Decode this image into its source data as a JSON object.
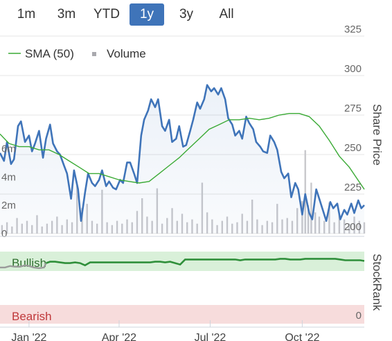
{
  "range_buttons": [
    {
      "label": "1m",
      "active": false
    },
    {
      "label": "3m",
      "active": false
    },
    {
      "label": "YTD",
      "active": false
    },
    {
      "label": "1y",
      "active": true
    },
    {
      "label": "3y",
      "active": false
    },
    {
      "label": "All",
      "active": false
    }
  ],
  "legend": {
    "sma_label": "SMA (50)",
    "volume_label": "Volume"
  },
  "colors": {
    "price": "#3f74b9",
    "sma": "#3aaa35",
    "volume": "#c8c8cc",
    "stockrank_line": "#2f8f3a",
    "stockrank_grey": "#9a9a9a",
    "bullish_band": "#d9f0d9",
    "bearish_band": "#f7dcdc",
    "active_button": "#3f74b9"
  },
  "chart_data": [
    {
      "type": "line",
      "ylabel": "Share Price",
      "ylim": [
        200,
        325
      ],
      "yticks": [
        "325",
        "300",
        "275",
        "250",
        "225",
        "200"
      ],
      "volume_ticks": [
        "6m",
        "4m",
        "2m",
        "0"
      ],
      "volume_ylim": [
        0,
        7.5
      ],
      "xticks": [
        "Jan '22",
        "Apr '22",
        "Jul '22",
        "Oct '22"
      ],
      "xtick_days": [
        0,
        90,
        181,
        273
      ],
      "x_range_days": [
        -29,
        335
      ],
      "grid": true,
      "legend_position": "top-left",
      "series": [
        {
          "name": "Share Price",
          "days": [
            -29,
            -25,
            -22,
            -18,
            -15,
            -11,
            -8,
            -4,
            0,
            3,
            6,
            10,
            14,
            17,
            21,
            24,
            28,
            31,
            35,
            38,
            42,
            45,
            49,
            52,
            56,
            59,
            63,
            66,
            70,
            73,
            77,
            80,
            84,
            87,
            91,
            94,
            98,
            101,
            105,
            108,
            112,
            115,
            119,
            122,
            126,
            129,
            133,
            136,
            140,
            143,
            147,
            150,
            154,
            157,
            161,
            164,
            168,
            171,
            175,
            178,
            182,
            185,
            189,
            192,
            196,
            199,
            203,
            206,
            210,
            213,
            217,
            220,
            224,
            227,
            231,
            234,
            238,
            241,
            245,
            248,
            252,
            255,
            259,
            262,
            266,
            269,
            273,
            276,
            280,
            283,
            287,
            290,
            294,
            297,
            301,
            304,
            308,
            311,
            315,
            318,
            322,
            325,
            329,
            332,
            335
          ],
          "values": [
            251,
            246,
            258,
            244,
            247,
            268,
            271,
            258,
            262,
            252,
            257,
            265,
            248,
            260,
            269,
            257,
            252,
            250,
            243,
            238,
            222,
            240,
            228,
            208,
            226,
            238,
            232,
            230,
            234,
            240,
            230,
            233,
            229,
            228,
            234,
            232,
            245,
            245,
            238,
            232,
            262,
            272,
            278,
            285,
            280,
            285,
            268,
            265,
            272,
            258,
            260,
            268,
            255,
            256,
            265,
            272,
            283,
            279,
            285,
            294,
            290,
            292,
            288,
            292,
            285,
            273,
            269,
            262,
            265,
            260,
            274,
            270,
            266,
            258,
            255,
            252,
            251,
            262,
            258,
            253,
            239,
            235,
            238,
            223,
            232,
            228,
            212,
            225,
            213,
            209,
            228,
            222,
            214,
            208,
            220,
            216,
            219,
            209,
            215,
            212,
            219,
            213,
            221,
            216,
            218
          ]
        },
        {
          "name": "SMA (50)",
          "days": [
            -29,
            -20,
            -10,
            0,
            10,
            20,
            30,
            40,
            50,
            60,
            70,
            80,
            90,
            100,
            110,
            120,
            130,
            140,
            150,
            160,
            170,
            180,
            190,
            200,
            210,
            220,
            230,
            240,
            250,
            260,
            270,
            280,
            290,
            300,
            310,
            320,
            335
          ],
          "values": [
            263,
            257,
            255,
            255,
            253,
            253,
            250,
            246,
            242,
            238,
            238,
            236,
            234,
            233,
            232,
            233,
            238,
            243,
            248,
            254,
            260,
            266,
            269,
            272,
            272,
            273,
            272,
            273,
            275,
            276,
            276,
            274,
            268,
            259,
            249,
            242,
            228
          ]
        }
      ],
      "volume": {
        "days": [
          -27,
          -22,
          -17,
          -12,
          -7,
          -2,
          3,
          8,
          13,
          18,
          23,
          28,
          33,
          38,
          43,
          48,
          53,
          58,
          63,
          68,
          73,
          78,
          83,
          88,
          93,
          98,
          103,
          108,
          113,
          118,
          123,
          128,
          133,
          138,
          143,
          148,
          153,
          158,
          163,
          168,
          173,
          178,
          183,
          188,
          193,
          198,
          203,
          208,
          213,
          218,
          223,
          228,
          233,
          238,
          243,
          248,
          253,
          258,
          263,
          268,
          273,
          276,
          279,
          282,
          286,
          290,
          295,
          300,
          305,
          310,
          315,
          320,
          325,
          330,
          335
        ],
        "values": [
          0.6,
          0.8,
          0.5,
          1.1,
          0.7,
          0.9,
          0.6,
          1.3,
          0.5,
          0.7,
          0.9,
          1.2,
          0.6,
          1.0,
          0.8,
          3.4,
          1.8,
          2.1,
          0.9,
          0.7,
          3.1,
          0.8,
          0.6,
          0.9,
          0.7,
          1.0,
          0.8,
          1.6,
          2.5,
          1.2,
          0.9,
          3.2,
          0.7,
          1.1,
          1.8,
          0.9,
          1.4,
          0.8,
          1.0,
          0.7,
          3.6,
          1.5,
          1.0,
          0.6,
          0.9,
          1.2,
          0.7,
          0.8,
          1.4,
          0.9,
          2.4,
          1.0,
          0.6,
          0.9,
          0.8,
          2.1,
          1.0,
          1.1,
          0.9,
          1.8,
          2.3,
          5.9,
          2.0,
          3.6,
          1.5,
          1.2,
          0.9,
          2.2,
          0.8,
          1.4,
          1.0,
          0.7,
          1.2,
          0.9,
          0.8
        ]
      }
    },
    {
      "type": "line",
      "ylabel": "StockRank",
      "ylim": [
        0,
        100
      ],
      "bands": [
        {
          "label": "Bullish",
          "from": 70,
          "to": 100
        },
        {
          "label": "Bearish",
          "from": 0,
          "to": 30
        }
      ],
      "ytick_label": "0",
      "series": [
        {
          "name": "StockRank",
          "days": [
            -29,
            -24,
            -19,
            -14,
            -9,
            -4,
            0,
            5,
            10,
            15,
            17,
            21,
            26,
            31,
            36,
            41,
            46,
            51,
            56,
            61,
            66,
            71,
            76,
            81,
            86,
            91,
            96,
            101,
            106,
            111,
            116,
            121,
            126,
            131,
            136,
            141,
            146,
            151,
            156,
            161,
            166,
            171,
            176,
            181,
            186,
            191,
            196,
            201,
            206,
            211,
            216,
            221,
            226,
            231,
            236,
            241,
            246,
            251,
            256,
            261,
            266,
            271,
            276,
            281,
            286,
            291,
            296,
            301,
            306,
            311,
            316,
            321,
            326,
            331,
            335
          ],
          "values": [
            78,
            78,
            80,
            79,
            79,
            81,
            80,
            78,
            77,
            78,
            84,
            86,
            86,
            85,
            84,
            84,
            85,
            84,
            81,
            85,
            85,
            85,
            85,
            85,
            85,
            85,
            85,
            85,
            85,
            85,
            85,
            85,
            86,
            86,
            85,
            86,
            84,
            82,
            89,
            89,
            89,
            89,
            89,
            89,
            89,
            89,
            89,
            89,
            89,
            88,
            89,
            89,
            89,
            89,
            89,
            89,
            89,
            90,
            90,
            89,
            89,
            89,
            90,
            90,
            90,
            90,
            90,
            90,
            90,
            89,
            88,
            88,
            88,
            88,
            87
          ]
        }
      ]
    }
  ]
}
